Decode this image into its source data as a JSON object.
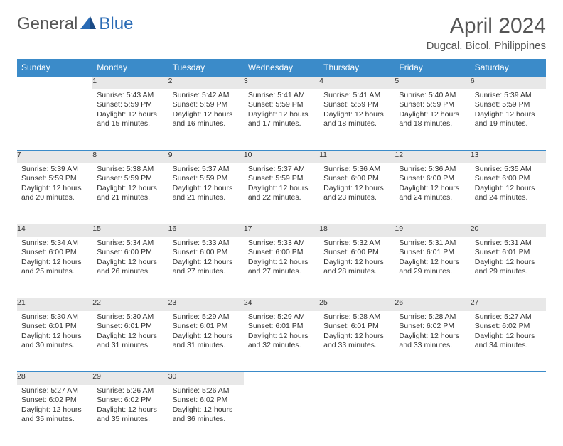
{
  "logo": {
    "text1": "General",
    "text2": "Blue"
  },
  "title": "April 2024",
  "location": "Dugcal, Bicol, Philippines",
  "colors": {
    "header_bg": "#3b8bc9",
    "header_fg": "#ffffff",
    "daynum_bg": "#e8e8e8",
    "text": "#333333",
    "accent": "#2a6bb5",
    "logo_gray": "#555555"
  },
  "weekdays": [
    "Sunday",
    "Monday",
    "Tuesday",
    "Wednesday",
    "Thursday",
    "Friday",
    "Saturday"
  ],
  "weeks": [
    [
      null,
      {
        "n": "1",
        "sr": "Sunrise: 5:43 AM",
        "ss": "Sunset: 5:59 PM",
        "d1": "Daylight: 12 hours",
        "d2": "and 15 minutes."
      },
      {
        "n": "2",
        "sr": "Sunrise: 5:42 AM",
        "ss": "Sunset: 5:59 PM",
        "d1": "Daylight: 12 hours",
        "d2": "and 16 minutes."
      },
      {
        "n": "3",
        "sr": "Sunrise: 5:41 AM",
        "ss": "Sunset: 5:59 PM",
        "d1": "Daylight: 12 hours",
        "d2": "and 17 minutes."
      },
      {
        "n": "4",
        "sr": "Sunrise: 5:41 AM",
        "ss": "Sunset: 5:59 PM",
        "d1": "Daylight: 12 hours",
        "d2": "and 18 minutes."
      },
      {
        "n": "5",
        "sr": "Sunrise: 5:40 AM",
        "ss": "Sunset: 5:59 PM",
        "d1": "Daylight: 12 hours",
        "d2": "and 18 minutes."
      },
      {
        "n": "6",
        "sr": "Sunrise: 5:39 AM",
        "ss": "Sunset: 5:59 PM",
        "d1": "Daylight: 12 hours",
        "d2": "and 19 minutes."
      }
    ],
    [
      {
        "n": "7",
        "sr": "Sunrise: 5:39 AM",
        "ss": "Sunset: 5:59 PM",
        "d1": "Daylight: 12 hours",
        "d2": "and 20 minutes."
      },
      {
        "n": "8",
        "sr": "Sunrise: 5:38 AM",
        "ss": "Sunset: 5:59 PM",
        "d1": "Daylight: 12 hours",
        "d2": "and 21 minutes."
      },
      {
        "n": "9",
        "sr": "Sunrise: 5:37 AM",
        "ss": "Sunset: 5:59 PM",
        "d1": "Daylight: 12 hours",
        "d2": "and 21 minutes."
      },
      {
        "n": "10",
        "sr": "Sunrise: 5:37 AM",
        "ss": "Sunset: 5:59 PM",
        "d1": "Daylight: 12 hours",
        "d2": "and 22 minutes."
      },
      {
        "n": "11",
        "sr": "Sunrise: 5:36 AM",
        "ss": "Sunset: 6:00 PM",
        "d1": "Daylight: 12 hours",
        "d2": "and 23 minutes."
      },
      {
        "n": "12",
        "sr": "Sunrise: 5:36 AM",
        "ss": "Sunset: 6:00 PM",
        "d1": "Daylight: 12 hours",
        "d2": "and 24 minutes."
      },
      {
        "n": "13",
        "sr": "Sunrise: 5:35 AM",
        "ss": "Sunset: 6:00 PM",
        "d1": "Daylight: 12 hours",
        "d2": "and 24 minutes."
      }
    ],
    [
      {
        "n": "14",
        "sr": "Sunrise: 5:34 AM",
        "ss": "Sunset: 6:00 PM",
        "d1": "Daylight: 12 hours",
        "d2": "and 25 minutes."
      },
      {
        "n": "15",
        "sr": "Sunrise: 5:34 AM",
        "ss": "Sunset: 6:00 PM",
        "d1": "Daylight: 12 hours",
        "d2": "and 26 minutes."
      },
      {
        "n": "16",
        "sr": "Sunrise: 5:33 AM",
        "ss": "Sunset: 6:00 PM",
        "d1": "Daylight: 12 hours",
        "d2": "and 27 minutes."
      },
      {
        "n": "17",
        "sr": "Sunrise: 5:33 AM",
        "ss": "Sunset: 6:00 PM",
        "d1": "Daylight: 12 hours",
        "d2": "and 27 minutes."
      },
      {
        "n": "18",
        "sr": "Sunrise: 5:32 AM",
        "ss": "Sunset: 6:00 PM",
        "d1": "Daylight: 12 hours",
        "d2": "and 28 minutes."
      },
      {
        "n": "19",
        "sr": "Sunrise: 5:31 AM",
        "ss": "Sunset: 6:01 PM",
        "d1": "Daylight: 12 hours",
        "d2": "and 29 minutes."
      },
      {
        "n": "20",
        "sr": "Sunrise: 5:31 AM",
        "ss": "Sunset: 6:01 PM",
        "d1": "Daylight: 12 hours",
        "d2": "and 29 minutes."
      }
    ],
    [
      {
        "n": "21",
        "sr": "Sunrise: 5:30 AM",
        "ss": "Sunset: 6:01 PM",
        "d1": "Daylight: 12 hours",
        "d2": "and 30 minutes."
      },
      {
        "n": "22",
        "sr": "Sunrise: 5:30 AM",
        "ss": "Sunset: 6:01 PM",
        "d1": "Daylight: 12 hours",
        "d2": "and 31 minutes."
      },
      {
        "n": "23",
        "sr": "Sunrise: 5:29 AM",
        "ss": "Sunset: 6:01 PM",
        "d1": "Daylight: 12 hours",
        "d2": "and 31 minutes."
      },
      {
        "n": "24",
        "sr": "Sunrise: 5:29 AM",
        "ss": "Sunset: 6:01 PM",
        "d1": "Daylight: 12 hours",
        "d2": "and 32 minutes."
      },
      {
        "n": "25",
        "sr": "Sunrise: 5:28 AM",
        "ss": "Sunset: 6:01 PM",
        "d1": "Daylight: 12 hours",
        "d2": "and 33 minutes."
      },
      {
        "n": "26",
        "sr": "Sunrise: 5:28 AM",
        "ss": "Sunset: 6:02 PM",
        "d1": "Daylight: 12 hours",
        "d2": "and 33 minutes."
      },
      {
        "n": "27",
        "sr": "Sunrise: 5:27 AM",
        "ss": "Sunset: 6:02 PM",
        "d1": "Daylight: 12 hours",
        "d2": "and 34 minutes."
      }
    ],
    [
      {
        "n": "28",
        "sr": "Sunrise: 5:27 AM",
        "ss": "Sunset: 6:02 PM",
        "d1": "Daylight: 12 hours",
        "d2": "and 35 minutes."
      },
      {
        "n": "29",
        "sr": "Sunrise: 5:26 AM",
        "ss": "Sunset: 6:02 PM",
        "d1": "Daylight: 12 hours",
        "d2": "and 35 minutes."
      },
      {
        "n": "30",
        "sr": "Sunrise: 5:26 AM",
        "ss": "Sunset: 6:02 PM",
        "d1": "Daylight: 12 hours",
        "d2": "and 36 minutes."
      },
      null,
      null,
      null,
      null
    ]
  ]
}
